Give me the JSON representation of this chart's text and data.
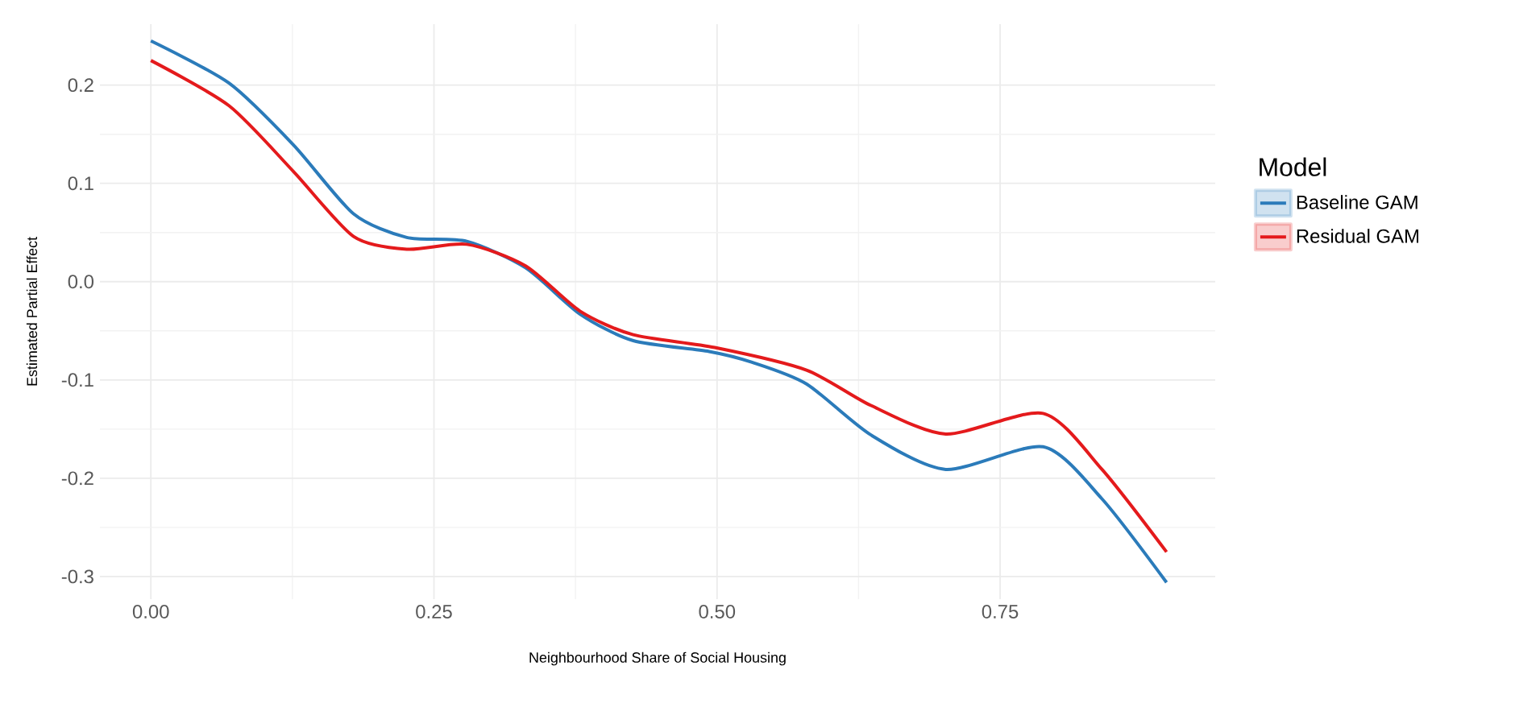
{
  "chart_data": {
    "type": "line",
    "xlabel": "Neighbourhood Share of Social Housing",
    "ylabel": "Estimated Partial Effect",
    "legend_title": "Model",
    "xlim": [
      -0.045,
      0.94
    ],
    "ylim": [
      -0.323,
      0.262
    ],
    "xticks": [
      {
        "value": 0,
        "label": "0.00"
      },
      {
        "value": 0.25,
        "label": "0.25"
      },
      {
        "value": 0.5,
        "label": "0.50"
      },
      {
        "value": 0.75,
        "label": "0.75"
      }
    ],
    "yticks": [
      {
        "value": -0.3,
        "label": "-0.3"
      },
      {
        "value": -0.2,
        "label": "-0.2"
      },
      {
        "value": -0.1,
        "label": "-0.1"
      },
      {
        "value": 0,
        "label": "0.0"
      },
      {
        "value": 0.1,
        "label": "0.1"
      },
      {
        "value": 0.2,
        "label": "0.2"
      }
    ],
    "grid": true,
    "legend": "right",
    "series": [
      {
        "name": "Baseline GAM",
        "color": "#2b7bba",
        "x": [
          0,
          0.069,
          0.126,
          0.179,
          0.226,
          0.279,
          0.331,
          0.379,
          0.426,
          0.493,
          0.531,
          0.579,
          0.636,
          0.702,
          0.788,
          0.84,
          0.897
        ],
        "values": [
          0.245,
          0.202,
          0.139,
          0.069,
          0.045,
          0.041,
          0.014,
          -0.033,
          -0.06,
          -0.071,
          -0.082,
          -0.104,
          -0.156,
          -0.191,
          -0.168,
          -0.221,
          -0.306
        ]
      },
      {
        "name": "Residual GAM",
        "color": "#e41a1c",
        "x": [
          0,
          0.069,
          0.126,
          0.179,
          0.226,
          0.279,
          0.331,
          0.379,
          0.426,
          0.498,
          0.579,
          0.636,
          0.702,
          0.788,
          0.84,
          0.897
        ],
        "values": [
          0.225,
          0.179,
          0.112,
          0.046,
          0.033,
          0.038,
          0.016,
          -0.03,
          -0.054,
          -0.067,
          -0.09,
          -0.126,
          -0.155,
          -0.134,
          -0.191,
          -0.275
        ]
      }
    ]
  }
}
